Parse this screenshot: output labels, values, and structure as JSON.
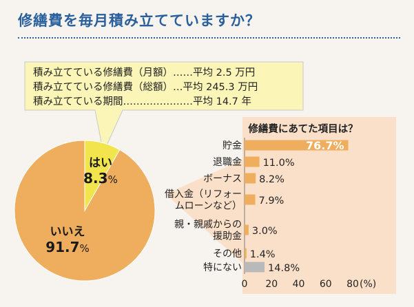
{
  "title": "修繕費を毎月積み立てていますか？",
  "info": [
    "積み立てている修繕費（月額）……平均 2.5 万円",
    "積み立てている修繕費（総額）…平均 245.3 万円",
    "積み立てている期間…………………平均 14.7 年"
  ],
  "colors": {
    "title": "#2a5f9e",
    "pie_no": "#efad5e",
    "pie_yes": "#f1e44c",
    "bar": "#efad5e",
    "bar_other": "#b9b9b9",
    "panel": "#fbe0c9",
    "callout": "#fbf6b8"
  },
  "chart_data": [
    {
      "type": "pie",
      "title": "",
      "slices": [
        {
          "label": "はい",
          "value": 8.3,
          "value_label": "8.3",
          "unit": "%"
        },
        {
          "label": "いいえ",
          "value": 91.7,
          "value_label": "91.7",
          "unit": "%"
        }
      ]
    },
    {
      "type": "bar",
      "orientation": "horizontal",
      "title": "修繕費にあてた項目は？",
      "categories": [
        [
          "貯金"
        ],
        [
          "退職金"
        ],
        [
          "ボーナス"
        ],
        [
          "借入金（リフォー",
          "ムローンなど）"
        ],
        [
          "親・親戚からの",
          "援助金"
        ],
        [
          "その他"
        ],
        [
          "特にない"
        ]
      ],
      "values": [
        76.7,
        11.0,
        8.2,
        7.9,
        3.0,
        1.4,
        14.8
      ],
      "value_labels": [
        "76.7%",
        "11.0%",
        "8.2%",
        "7.9%",
        "3.0%",
        "1.4%",
        "14.8%"
      ],
      "xlim": [
        0,
        80
      ],
      "xticks": [
        "0",
        "20",
        "40",
        "60",
        "80"
      ],
      "xunit": "(%)"
    }
  ]
}
